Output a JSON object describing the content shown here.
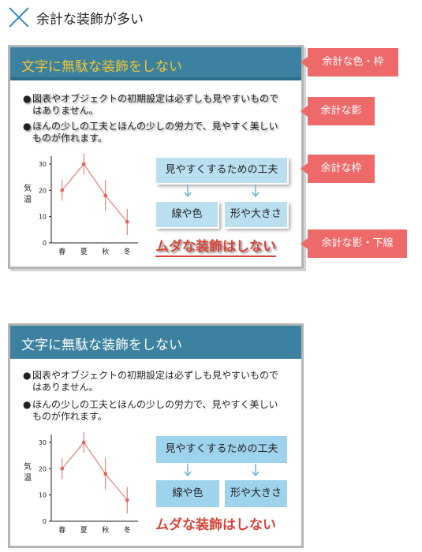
{
  "header": {
    "title": "余計な装飾が多い",
    "icon": "cross-icon"
  },
  "slide": {
    "title": "文字に無駄な装飾をしない",
    "bullet_mark": "●",
    "bullets": [
      "図表やオブジェクトの初期設定は必ずしも見やすいものではありません。",
      "ほんの少しの工夫とほんの少しの労力で、見やすく美しいものが作れます。"
    ],
    "flow": {
      "top": "見やすくするための工夫",
      "left": "線や色",
      "right": "形や大きさ"
    },
    "message": "ムダな装飾はしない"
  },
  "callouts": [
    "余計な色・枠",
    "余計な影",
    "余計な枠",
    "余計な影・下線"
  ],
  "chart_data": {
    "type": "line",
    "categories": [
      "春",
      "夏",
      "秋",
      "冬"
    ],
    "values": [
      20,
      30,
      18,
      8
    ],
    "error": [
      4,
      4,
      6,
      5
    ],
    "ylabel": "気温",
    "yticks": [
      0,
      10,
      20,
      30
    ],
    "ylim": [
      0,
      33
    ],
    "color": "#e0685f"
  },
  "colors": {
    "titlebar": "#3c82a0",
    "title_decorated": "#f3c530",
    "box": "#9ed3ee",
    "message": "#d8463a",
    "callout": "#ee6a6a"
  }
}
